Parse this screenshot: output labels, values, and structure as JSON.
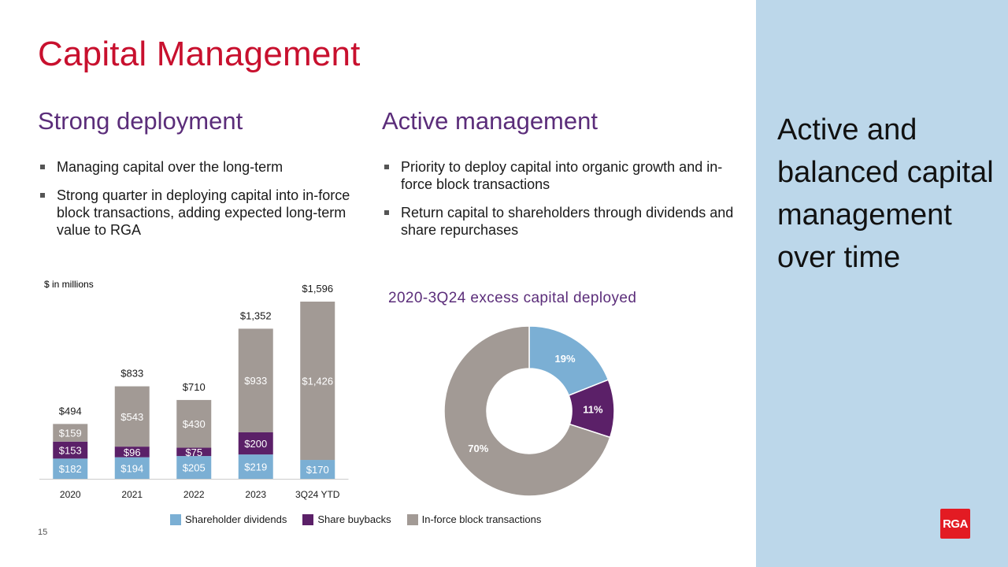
{
  "slide": {
    "title": "Capital Management",
    "page_number": "15"
  },
  "left": {
    "heading": "Strong deployment",
    "bullets": [
      "Managing capital over the long-term",
      "Strong quarter in deploying capital into in-force block transactions, adding expected long-term value to RGA"
    ]
  },
  "right": {
    "heading": "Active management",
    "bullets": [
      "Priority to deploy capital into organic growth and in-force block transactions",
      "Return capital to shareholders through dividends and share repurchases"
    ]
  },
  "side_panel": {
    "text": "Active and balanced capital management over time",
    "logo_text": "RGA"
  },
  "colors": {
    "dividends": "#7bafd4",
    "buybacks": "#5b2068",
    "inforce": "#a29a95"
  },
  "chart_data": [
    {
      "type": "bar",
      "stacked": true,
      "units_note": "$ in millions",
      "categories": [
        "2020",
        "2021",
        "2022",
        "2023",
        "3Q24 YTD"
      ],
      "series": [
        {
          "name": "Shareholder dividends",
          "values": [
            182,
            194,
            205,
            219,
            170
          ],
          "labels": [
            "$182",
            "$194",
            "$205",
            "$219",
            "$170"
          ]
        },
        {
          "name": "Share buybacks",
          "values": [
            153,
            96,
            75,
            200,
            0
          ],
          "labels": [
            "$153",
            "$96",
            "$75",
            "$200",
            ""
          ]
        },
        {
          "name": "In-force block transactions",
          "values": [
            159,
            543,
            430,
            933,
            1426
          ],
          "labels": [
            "$159",
            "$543",
            "$430",
            "$933",
            "$1,426"
          ]
        }
      ],
      "totals": [
        "$494",
        "$833",
        "$710",
        "$1,352",
        "$1,596"
      ],
      "ylim": [
        0,
        1596
      ],
      "legend": [
        "Shareholder dividends",
        "Share buybacks",
        "In-force block transactions"
      ],
      "legend_position": "bottom"
    },
    {
      "type": "pie",
      "donut": true,
      "title": "2020-3Q24 excess capital deployed",
      "slices": [
        {
          "name": "Shareholder dividends",
          "value": 19,
          "label": "19%"
        },
        {
          "name": "Share buybacks",
          "value": 11,
          "label": "11%"
        },
        {
          "name": "In-force block transactions",
          "value": 70,
          "label": "70%"
        }
      ]
    }
  ]
}
